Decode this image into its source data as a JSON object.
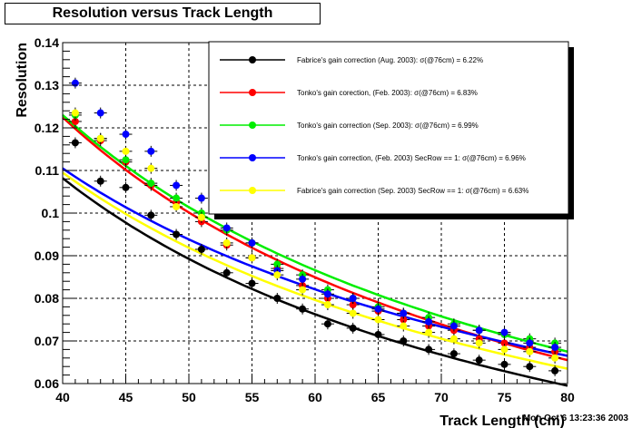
{
  "chart_data": {
    "type": "scatter",
    "title": "Resolution versus Track Length",
    "xlabel": "Track Length (cm)",
    "ylabel": "Resolution",
    "xlim": [
      40,
      80
    ],
    "ylim": [
      0.06,
      0.14
    ],
    "x_ticks": [
      40,
      45,
      50,
      55,
      60,
      65,
      70,
      75,
      80
    ],
    "y_ticks": [
      0.06,
      0.07,
      0.08,
      0.09,
      0.1,
      0.11,
      0.12,
      0.13,
      0.14
    ],
    "y_tick_labels": [
      "0.06",
      "0.07",
      "0.08",
      "0.09",
      "0.1",
      "0.11",
      "0.12",
      "0.13",
      "0.14"
    ],
    "grid": true,
    "legend_position": "top-right",
    "footer": "Mon Oct  6 13:23:36 2003",
    "x": [
      41,
      43,
      45,
      47,
      49,
      51,
      53,
      55,
      57,
      59,
      61,
      63,
      65,
      67,
      69,
      71,
      73,
      75,
      77,
      79
    ],
    "series": [
      {
        "name": "Fabrice's gain correction (Aug. 2003): σ(@76cm) =  6.22%",
        "color": "#000000",
        "values": [
          0.1165,
          0.1075,
          0.106,
          0.0995,
          0.095,
          0.0915,
          0.086,
          0.0835,
          0.08,
          0.0775,
          0.074,
          0.073,
          0.0715,
          0.07,
          0.068,
          0.067,
          0.0655,
          0.0645,
          0.064,
          0.063
        ],
        "fit_start": 0.1082,
        "fit_end": 0.0595
      },
      {
        "name": "Tonko's gain corection, (Feb. 2003): σ(@76cm) =  6.83%",
        "color": "#ff0000",
        "values": [
          0.1215,
          0.117,
          0.112,
          0.1065,
          0.1025,
          0.098,
          0.0925,
          0.0895,
          0.087,
          0.083,
          0.08,
          0.0785,
          0.077,
          0.075,
          0.0735,
          0.0725,
          0.0705,
          0.0695,
          0.0685,
          0.0675
        ],
        "fit_start": 0.1225,
        "fit_end": 0.0655
      },
      {
        "name": "Tonko's gain correction (Sep. 2003): σ(@76cm) =  6.99%",
        "color": "#00ee00",
        "values": [
          0.123,
          0.1175,
          0.1125,
          0.107,
          0.1035,
          0.1,
          0.096,
          0.093,
          0.088,
          0.0855,
          0.082,
          0.08,
          0.078,
          0.0765,
          0.0755,
          0.074,
          0.0725,
          0.0715,
          0.0705,
          0.0695
        ],
        "fit_start": 0.123,
        "fit_end": 0.0675
      },
      {
        "name": "Tonko's gain correction, (Feb. 2003) SecRow == 1:  σ(@76cm) =  6.96%",
        "color": "#0000ff",
        "values": [
          0.1305,
          0.1235,
          0.1185,
          0.1145,
          0.1065,
          0.1035,
          0.0965,
          0.093,
          0.0865,
          0.0845,
          0.081,
          0.08,
          0.0775,
          0.0765,
          0.0745,
          0.0735,
          0.0725,
          0.072,
          0.0695,
          0.0685
        ],
        "fit_start": 0.1105,
        "fit_end": 0.0665
      },
      {
        "name": "Fabrice's gain correction (Sep. 2003) SecRow == 1:  σ(@76cm) =  6.63%",
        "color": "#ffff00",
        "values": [
          0.1235,
          0.1175,
          0.1145,
          0.1105,
          0.1015,
          0.099,
          0.093,
          0.0895,
          0.0855,
          0.082,
          0.0785,
          0.0765,
          0.075,
          0.0735,
          0.072,
          0.0705,
          0.0695,
          0.068,
          0.0675,
          0.066
        ],
        "fit_start": 0.1095,
        "fit_end": 0.0635
      }
    ]
  }
}
